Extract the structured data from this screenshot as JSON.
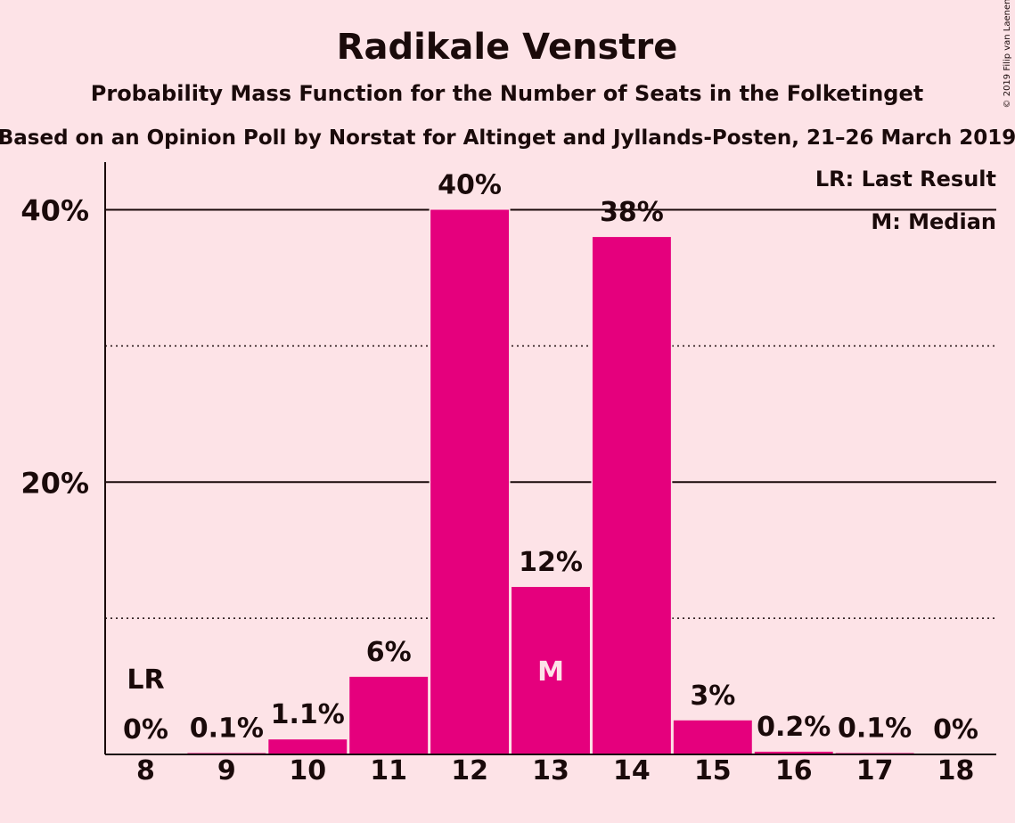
{
  "chart_data": {
    "type": "bar",
    "title": "Radikale Venstre",
    "subtitle": "Probability Mass Function for the Number of Seats in the Folketinget",
    "subtitle2": "Based on an Opinion Poll by Norstat for Altinget and Jyllands-Posten, 21–26 March 2019",
    "copyright": "© 2019 Filip van Laenen",
    "legend": [
      "LR: Last Result",
      "M: Median"
    ],
    "legend_position": "top-right",
    "categories": [
      "8",
      "9",
      "10",
      "11",
      "12",
      "13",
      "14",
      "15",
      "16",
      "17",
      "18"
    ],
    "values": [
      0,
      0.1,
      1.1,
      5.7,
      40,
      12.3,
      38,
      2.5,
      0.2,
      0.1,
      0
    ],
    "data_labels": [
      "0%",
      "0.1%",
      "1.1%",
      "6%",
      "40%",
      "12%",
      "38%",
      "3%",
      "0.2%",
      "0.1%",
      "0%"
    ],
    "ylim": [
      0,
      43.5
    ],
    "yticks": [
      {
        "value": 20,
        "label": "20%"
      },
      {
        "value": 40,
        "label": "40%"
      }
    ],
    "minor_gridlines": [
      10,
      30
    ],
    "last_result": {
      "category": "8",
      "marker": "LR"
    },
    "median": {
      "category": "13",
      "marker": "M"
    },
    "bar_color": "#E5007D",
    "xlabel": "",
    "ylabel": ""
  }
}
